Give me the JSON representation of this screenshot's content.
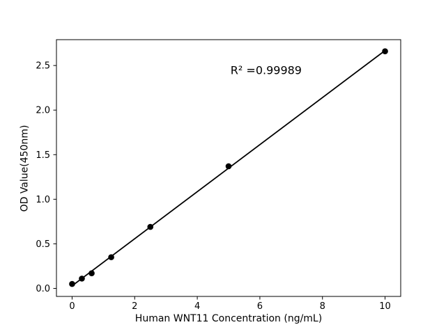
{
  "chart_data": {
    "type": "scatter",
    "title": "",
    "xlabel": "Human WNT11 Concentration (ng/mL)",
    "ylabel": "OD Value(450nm)",
    "points": [
      {
        "x": 0,
        "y": 0.05
      },
      {
        "x": 0.3125,
        "y": 0.11
      },
      {
        "x": 0.625,
        "y": 0.17
      },
      {
        "x": 1.25,
        "y": 0.35
      },
      {
        "x": 2.5,
        "y": 0.69
      },
      {
        "x": 5,
        "y": 1.37
      },
      {
        "x": 10,
        "y": 2.66
      }
    ],
    "fit_line": {
      "kind": "linear",
      "x_start": 0,
      "x_end": 10
    },
    "r_squared": 0.99989,
    "annotation": {
      "text": "R² =0.99989",
      "x": 6.2,
      "y": 2.45
    },
    "xlim": [
      -0.5,
      10.5
    ],
    "ylim": [
      -0.09,
      2.79
    ],
    "xticks": {
      "values": [
        0,
        2,
        4,
        6,
        8,
        10
      ],
      "labels": [
        "0",
        "2",
        "4",
        "6",
        "8",
        "10"
      ]
    },
    "yticks": {
      "values": [
        0,
        0.5,
        1,
        1.5,
        2,
        2.5
      ],
      "labels": [
        "0.0",
        "0.5",
        "1.0",
        "1.5",
        "2.0",
        "2.5"
      ]
    },
    "grid": false,
    "legend": null,
    "marker": "circle",
    "marker_color": "#000000",
    "line_color": "#000000",
    "axis_color": "#000000",
    "background_color": "#ffffff"
  }
}
